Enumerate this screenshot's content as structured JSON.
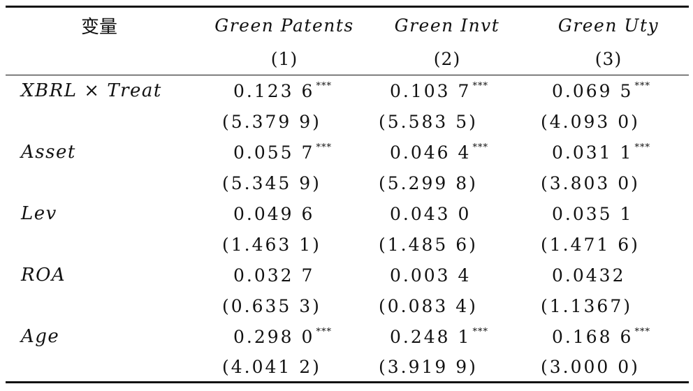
{
  "table": {
    "header": {
      "variable_label": "变量",
      "columns": [
        {
          "name": "Green Patents",
          "number": "(1)"
        },
        {
          "name": "Green Invt",
          "number": "(2)"
        },
        {
          "name": "Green Uty",
          "number": "(3)"
        }
      ]
    },
    "rows": [
      {
        "variable": "XBRL × Treat",
        "coef": [
          "0.123 6",
          "0.103 7",
          "0.069 5"
        ],
        "stars": [
          "***",
          "***",
          "***"
        ],
        "tstat": [
          "(5.379 9)",
          "(5.583 5)",
          "(4.093 0)"
        ]
      },
      {
        "variable": "Asset",
        "coef": [
          "0.055 7",
          "0.046 4",
          "0.031 1"
        ],
        "stars": [
          "***",
          "***",
          "***"
        ],
        "tstat": [
          "(5.345 9)",
          "(5.299 8)",
          "(3.803 0)"
        ]
      },
      {
        "variable": "Lev",
        "coef": [
          "0.049 6",
          "0.043 0",
          "0.035 1"
        ],
        "stars": [
          "",
          "",
          ""
        ],
        "tstat": [
          "(1.463 1)",
          "(1.485 6)",
          "(1.471 6)"
        ]
      },
      {
        "variable": "ROA",
        "coef": [
          "0.032 7",
          "0.003 4",
          "0.0432"
        ],
        "stars": [
          "",
          "",
          ""
        ],
        "tstat": [
          "(0.635 3)",
          "(0.083 4)",
          "(1.1367)"
        ]
      },
      {
        "variable": "Age",
        "coef": [
          "0.298 0",
          "0.248 1",
          "0.168 6"
        ],
        "stars": [
          "***",
          "***",
          "***"
        ],
        "tstat": [
          "(4.041 2)",
          "(3.919 9)",
          "(3.000 0)"
        ]
      }
    ]
  }
}
